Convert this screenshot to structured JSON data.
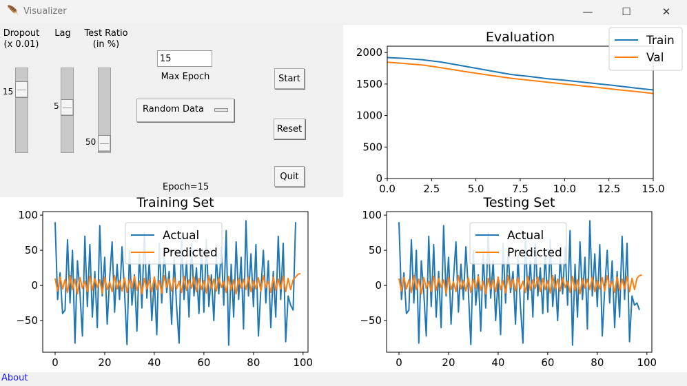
{
  "window": {
    "title": "Visualizer",
    "minimize_icon": "minimize-icon",
    "maximize_icon": "maximize-icon",
    "close_icon": "close-icon"
  },
  "controls": {
    "dropout": {
      "label": "Dropout\n(x 0.01)",
      "value": "15",
      "min": 0,
      "max": 100
    },
    "lag": {
      "label": "Lag",
      "value": "5",
      "min": 1,
      "max": 20
    },
    "test_ratio": {
      "label": "Test Ratio\n(in %)",
      "value": "50",
      "min": 0,
      "max": 50
    },
    "max_epoch": {
      "value": "15",
      "label": "Max Epoch"
    },
    "data_source": {
      "selected": "Random Data"
    },
    "buttons": {
      "start": "Start",
      "reset": "Reset",
      "quit": "Quit"
    },
    "status": "Epoch=15"
  },
  "footer": {
    "about": "About"
  },
  "colors": {
    "blue": "#1f77b4",
    "orange": "#ff7f0e"
  },
  "chart_data": [
    {
      "id": "evaluation",
      "type": "line",
      "title": "Evaluation",
      "xlim": [
        0,
        15
      ],
      "ylim": [
        0,
        2100
      ],
      "xticks": [
        0,
        2.5,
        5,
        7.5,
        10,
        12.5,
        15
      ],
      "xtick_labels": [
        "0.0",
        "2.5",
        "5.0",
        "7.5",
        "10.0",
        "12.5",
        "15.0"
      ],
      "yticks": [
        0,
        500,
        1000,
        1500,
        2000
      ],
      "legend": "top-right",
      "series": [
        {
          "name": "Train",
          "color": "#1f77b4",
          "x": [
            0,
            1,
            2,
            3,
            4,
            5,
            6,
            7,
            8,
            9,
            10,
            11,
            12,
            13,
            14,
            15
          ],
          "y": [
            1920,
            1905,
            1885,
            1850,
            1800,
            1750,
            1700,
            1650,
            1620,
            1585,
            1560,
            1530,
            1500,
            1470,
            1435,
            1405
          ]
        },
        {
          "name": "Val",
          "color": "#ff7f0e",
          "x": [
            0,
            1,
            2,
            3,
            4,
            5,
            6,
            7,
            8,
            9,
            10,
            11,
            12,
            13,
            14,
            15
          ],
          "y": [
            1845,
            1825,
            1800,
            1760,
            1715,
            1670,
            1630,
            1590,
            1560,
            1530,
            1500,
            1470,
            1440,
            1410,
            1380,
            1350
          ]
        }
      ]
    },
    {
      "id": "training",
      "type": "line",
      "title": "Training Set",
      "xlim": [
        -5,
        102
      ],
      "ylim": [
        -95,
        105
      ],
      "xticks": [
        0,
        20,
        40,
        60,
        80,
        100
      ],
      "xtick_labels": [
        "0",
        "20",
        "40",
        "60",
        "80",
        "100"
      ],
      "yticks": [
        -50,
        0,
        50,
        100
      ],
      "ytick_labels": [
        "−50",
        "0",
        "50",
        "100"
      ],
      "legend": "top-center",
      "series": [
        {
          "name": "Actual",
          "color": "#1f77b4",
          "y": [
            90,
            -20,
            18,
            -40,
            -35,
            65,
            -25,
            50,
            -82,
            35,
            -10,
            -72,
            70,
            -30,
            58,
            -45,
            20,
            -60,
            85,
            -15,
            40,
            -55,
            10,
            62,
            -38,
            30,
            -20,
            55,
            -8,
            -84,
            50,
            -28,
            15,
            -65,
            45,
            -32,
            75,
            -18,
            35,
            -50,
            10,
            -70,
            60,
            -25,
            48,
            -10,
            20,
            -55,
            40,
            -30,
            -82,
            70,
            -20,
            35,
            -45,
            60,
            -15,
            25,
            -40,
            50,
            -38,
            65,
            -30,
            15,
            -50,
            40,
            -12,
            55,
            -28,
            78,
            -85,
            30,
            -45,
            62,
            -20,
            40,
            -62,
            92,
            -15,
            45,
            -30,
            58,
            -72,
            -5,
            50,
            -25,
            35,
            -60,
            20,
            -45,
            70,
            -20,
            60,
            -80,
            -15,
            -28,
            -35,
            90
          ]
        },
        {
          "name": "Predicted",
          "color": "#ff7f0e",
          "y": [
            10,
            -8,
            12,
            -5,
            8,
            -10,
            14,
            -6,
            9,
            -12,
            11,
            -4,
            6,
            -9,
            13,
            -7,
            10,
            -3,
            8,
            -11,
            12,
            -6,
            5,
            -9,
            14,
            -5,
            7,
            -8,
            11,
            -10,
            9,
            -4,
            13,
            -7,
            6,
            -12,
            10,
            -5,
            8,
            -9,
            12,
            -6,
            7,
            -11,
            14,
            -3,
            9,
            -8,
            11,
            -5,
            6,
            -10,
            13,
            -7,
            8,
            -4,
            12,
            -9,
            10,
            -6,
            7,
            -11,
            14,
            -5,
            9,
            -8,
            11,
            -3,
            6,
            -10,
            13,
            -7,
            8,
            -12,
            10,
            -4,
            9,
            -6,
            12,
            -9,
            7,
            -5,
            11,
            -8,
            14,
            -3,
            6,
            -10,
            12,
            -7,
            9,
            -5,
            13,
            -9,
            10,
            -6,
            8,
            12,
            16,
            17
          ]
        }
      ]
    },
    {
      "id": "testing",
      "type": "line",
      "title": "Testing Set",
      "xlim": [
        -5,
        102
      ],
      "ylim": [
        -95,
        105
      ],
      "xticks": [
        0,
        20,
        40,
        60,
        80,
        100
      ],
      "xtick_labels": [
        "0",
        "20",
        "40",
        "60",
        "80",
        "100"
      ],
      "yticks": [
        -50,
        0,
        50,
        100
      ],
      "ytick_labels": [
        "−50",
        "0",
        "50",
        "100"
      ],
      "legend": "top-center",
      "series": [
        {
          "name": "Actual",
          "color": "#1f77b4",
          "y": [
            90,
            -20,
            18,
            -40,
            -35,
            65,
            -25,
            50,
            -82,
            35,
            -10,
            -72,
            70,
            -30,
            58,
            -45,
            20,
            -60,
            85,
            -15,
            40,
            -55,
            10,
            62,
            -38,
            30,
            -20,
            55,
            -8,
            -84,
            50,
            -28,
            15,
            -65,
            45,
            -32,
            75,
            -18,
            35,
            -50,
            10,
            -70,
            60,
            -25,
            48,
            -10,
            20,
            -55,
            40,
            -30,
            -82,
            70,
            -20,
            35,
            -45,
            60,
            -15,
            25,
            -40,
            50,
            -38,
            65,
            -30,
            15,
            -50,
            40,
            -12,
            55,
            -28,
            78,
            -85,
            30,
            -45,
            62,
            -20,
            40,
            -62,
            92,
            -15,
            45,
            -30,
            58,
            -72,
            -5,
            50,
            -25,
            35,
            -60,
            20,
            -45,
            70,
            -20,
            60,
            -80,
            -15,
            -28,
            -25,
            -35
          ]
        },
        {
          "name": "Predicted",
          "color": "#ff7f0e",
          "y": [
            10,
            -8,
            12,
            -5,
            8,
            -10,
            14,
            -6,
            9,
            -12,
            11,
            -4,
            6,
            -9,
            13,
            -7,
            10,
            -3,
            8,
            -11,
            12,
            -6,
            5,
            -9,
            14,
            -5,
            7,
            -8,
            11,
            -10,
            9,
            -4,
            13,
            -7,
            6,
            -12,
            10,
            -5,
            8,
            -9,
            12,
            -6,
            7,
            -11,
            14,
            -3,
            9,
            -8,
            11,
            -5,
            6,
            -10,
            13,
            -7,
            8,
            -4,
            12,
            -9,
            10,
            -6,
            7,
            -11,
            14,
            -5,
            9,
            -8,
            11,
            -3,
            6,
            -10,
            13,
            -7,
            8,
            -12,
            10,
            -4,
            9,
            -6,
            12,
            -9,
            7,
            -5,
            11,
            -8,
            14,
            -3,
            6,
            -10,
            12,
            -7,
            9,
            -5,
            13,
            -9,
            10,
            -6,
            10,
            14,
            15
          ]
        }
      ]
    }
  ]
}
